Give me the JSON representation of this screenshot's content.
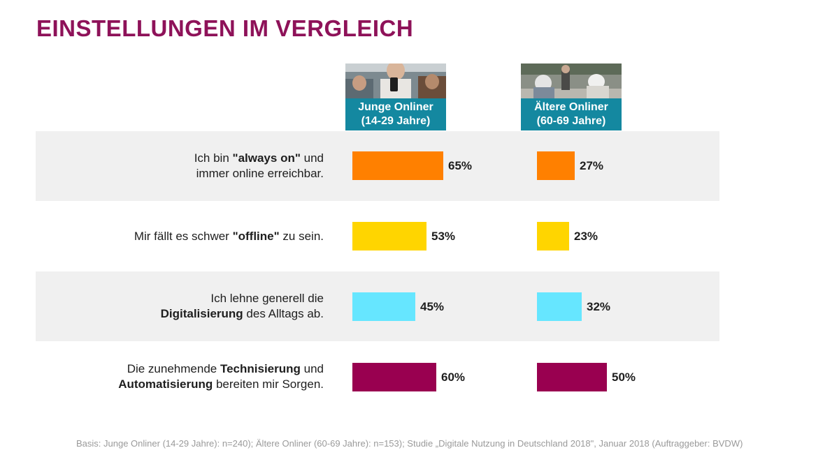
{
  "title": "EINSTELLUNGEN IM VERGLEICH",
  "columns": [
    {
      "line1": "Junge Onliner",
      "line2": "(14-29 Jahre)",
      "photo": "young-people-with-smartphones"
    },
    {
      "line1": "Ältere Onliner",
      "line2": "(60-69 Jahre)",
      "photo": "older-people-outdoors"
    }
  ],
  "statements": [
    {
      "parts": [
        {
          "text": "Ich bin ",
          "bold": false
        },
        {
          "text": "\"always on\"",
          "bold": true
        },
        {
          "text": " und",
          "bold": false
        },
        {
          "text": "\n",
          "bold": false
        },
        {
          "text": "immer online erreichbar.",
          "bold": false
        }
      ]
    },
    {
      "parts": [
        {
          "text": "Mir fällt es schwer ",
          "bold": false
        },
        {
          "text": "\"offline\"",
          "bold": true
        },
        {
          "text": " zu sein.",
          "bold": false
        }
      ]
    },
    {
      "parts": [
        {
          "text": "Ich lehne generell die",
          "bold": false
        },
        {
          "text": "\n",
          "bold": false
        },
        {
          "text": "Digitalisierung",
          "bold": true
        },
        {
          "text": " des Alltags ab.",
          "bold": false
        }
      ]
    },
    {
      "parts": [
        {
          "text": "Die zunehmende ",
          "bold": false
        },
        {
          "text": "Technisierung",
          "bold": true
        },
        {
          "text": " und",
          "bold": false
        },
        {
          "text": "\n",
          "bold": false
        },
        {
          "text": "Automatisierung",
          "bold": true
        },
        {
          "text": " bereiten mir Sorgen.",
          "bold": false
        }
      ]
    }
  ],
  "chart_data": {
    "type": "bar",
    "orientation": "horizontal",
    "title": "EINSTELLUNGEN IM VERGLEICH",
    "categories": [
      "Ich bin \"always on\" und immer online erreichbar.",
      "Mir fällt es schwer \"offline\" zu sein.",
      "Ich lehne generell die Digitalisierung des Alltags ab.",
      "Die zunehmende Technisierung und Automatisierung bereiten mir Sorgen."
    ],
    "series": [
      {
        "name": "Junge Onliner (14-29 Jahre)",
        "values": [
          65,
          53,
          45,
          60
        ]
      },
      {
        "name": "Ältere Onliner (60-69 Jahre)",
        "values": [
          27,
          23,
          32,
          50
        ]
      }
    ],
    "value_labels": [
      [
        "65%",
        "53%",
        "45%",
        "60%"
      ],
      [
        "27%",
        "23%",
        "32%",
        "50%"
      ]
    ],
    "unit": "%",
    "xlim": [
      0,
      100
    ],
    "bar_colors": [
      "#ff8000",
      "#ffd500",
      "#66e6ff",
      "#990050"
    ]
  },
  "footnote": "Basis: Junge Onliner (14-29 Jahre): n=240); Ältere Onliner (60-69 Jahre): n=153); Studie „Digitale Nutzung in Deutschland 2018\", Januar 2018 (Auftraggeber: BVDW)"
}
